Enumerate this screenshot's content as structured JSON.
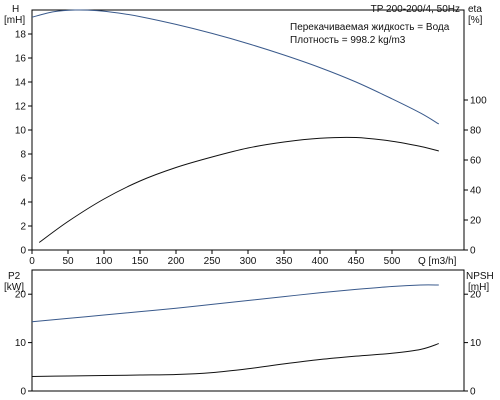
{
  "chart_data": [
    {
      "type": "line",
      "panel": "upper",
      "title": "TP 200-200/4, 50Hz",
      "annotations": [
        "Перекачиваемая жидкость = Вода",
        "Плотность = 998.2 kg/m3"
      ],
      "xlabel": "Q [m3/h]",
      "xlim": [
        0,
        600
      ],
      "xticks": [
        0,
        50,
        100,
        150,
        200,
        250,
        300,
        350,
        400,
        450,
        500
      ],
      "ylabel_left": [
        "H",
        "[mH]"
      ],
      "ylim_left": [
        0,
        20
      ],
      "yticks_left": [
        0,
        2,
        4,
        6,
        8,
        10,
        12,
        14,
        16,
        18
      ],
      "ylabel_right": [
        "eta",
        "[%]"
      ],
      "ylim_right": [
        0,
        160
      ],
      "yticks_right": [
        0,
        20,
        40,
        60,
        80,
        100
      ],
      "grid": false,
      "series": [
        {
          "axis": "left",
          "color": "#3a5a8c",
          "x": [
            0,
            30,
            60,
            90,
            120,
            150,
            200,
            250,
            300,
            350,
            400,
            450,
            500,
            540,
            565
          ],
          "y": [
            19.4,
            19.85,
            20.0,
            19.95,
            19.75,
            19.45,
            18.8,
            18.05,
            17.2,
            16.25,
            15.2,
            14.0,
            12.6,
            11.4,
            10.5
          ]
        },
        {
          "axis": "right",
          "color": "#111111",
          "x": [
            10,
            50,
            100,
            150,
            200,
            250,
            300,
            350,
            400,
            450,
            500,
            540,
            565
          ],
          "y": [
            5,
            19,
            34,
            46,
            55,
            62,
            68,
            72,
            74.5,
            75,
            72.5,
            69,
            66
          ]
        }
      ]
    },
    {
      "type": "line",
      "panel": "lower",
      "xlim": [
        0,
        600
      ],
      "ylabel_left": [
        "P2",
        "[kW]"
      ],
      "ylim_left": [
        0,
        25
      ],
      "yticks_left": [
        0,
        10,
        20
      ],
      "ylabel_right": [
        "NPSH",
        "[mH]"
      ],
      "ylim_right": [
        0,
        25
      ],
      "yticks_right": [
        0,
        10,
        20
      ],
      "grid": false,
      "series": [
        {
          "axis": "left",
          "color": "#3a5a8c",
          "x": [
            0,
            50,
            100,
            150,
            200,
            250,
            300,
            350,
            400,
            450,
            500,
            540,
            565
          ],
          "y": [
            14.3,
            15.0,
            15.7,
            16.4,
            17.1,
            17.9,
            18.7,
            19.5,
            20.3,
            21.0,
            21.6,
            21.9,
            21.9
          ]
        },
        {
          "axis": "right",
          "color": "#111111",
          "x": [
            0,
            50,
            100,
            150,
            200,
            250,
            300,
            350,
            400,
            450,
            500,
            540,
            565
          ],
          "y": [
            3.0,
            3.1,
            3.2,
            3.3,
            3.4,
            3.8,
            4.6,
            5.6,
            6.5,
            7.2,
            7.8,
            8.6,
            9.8
          ]
        }
      ]
    }
  ]
}
